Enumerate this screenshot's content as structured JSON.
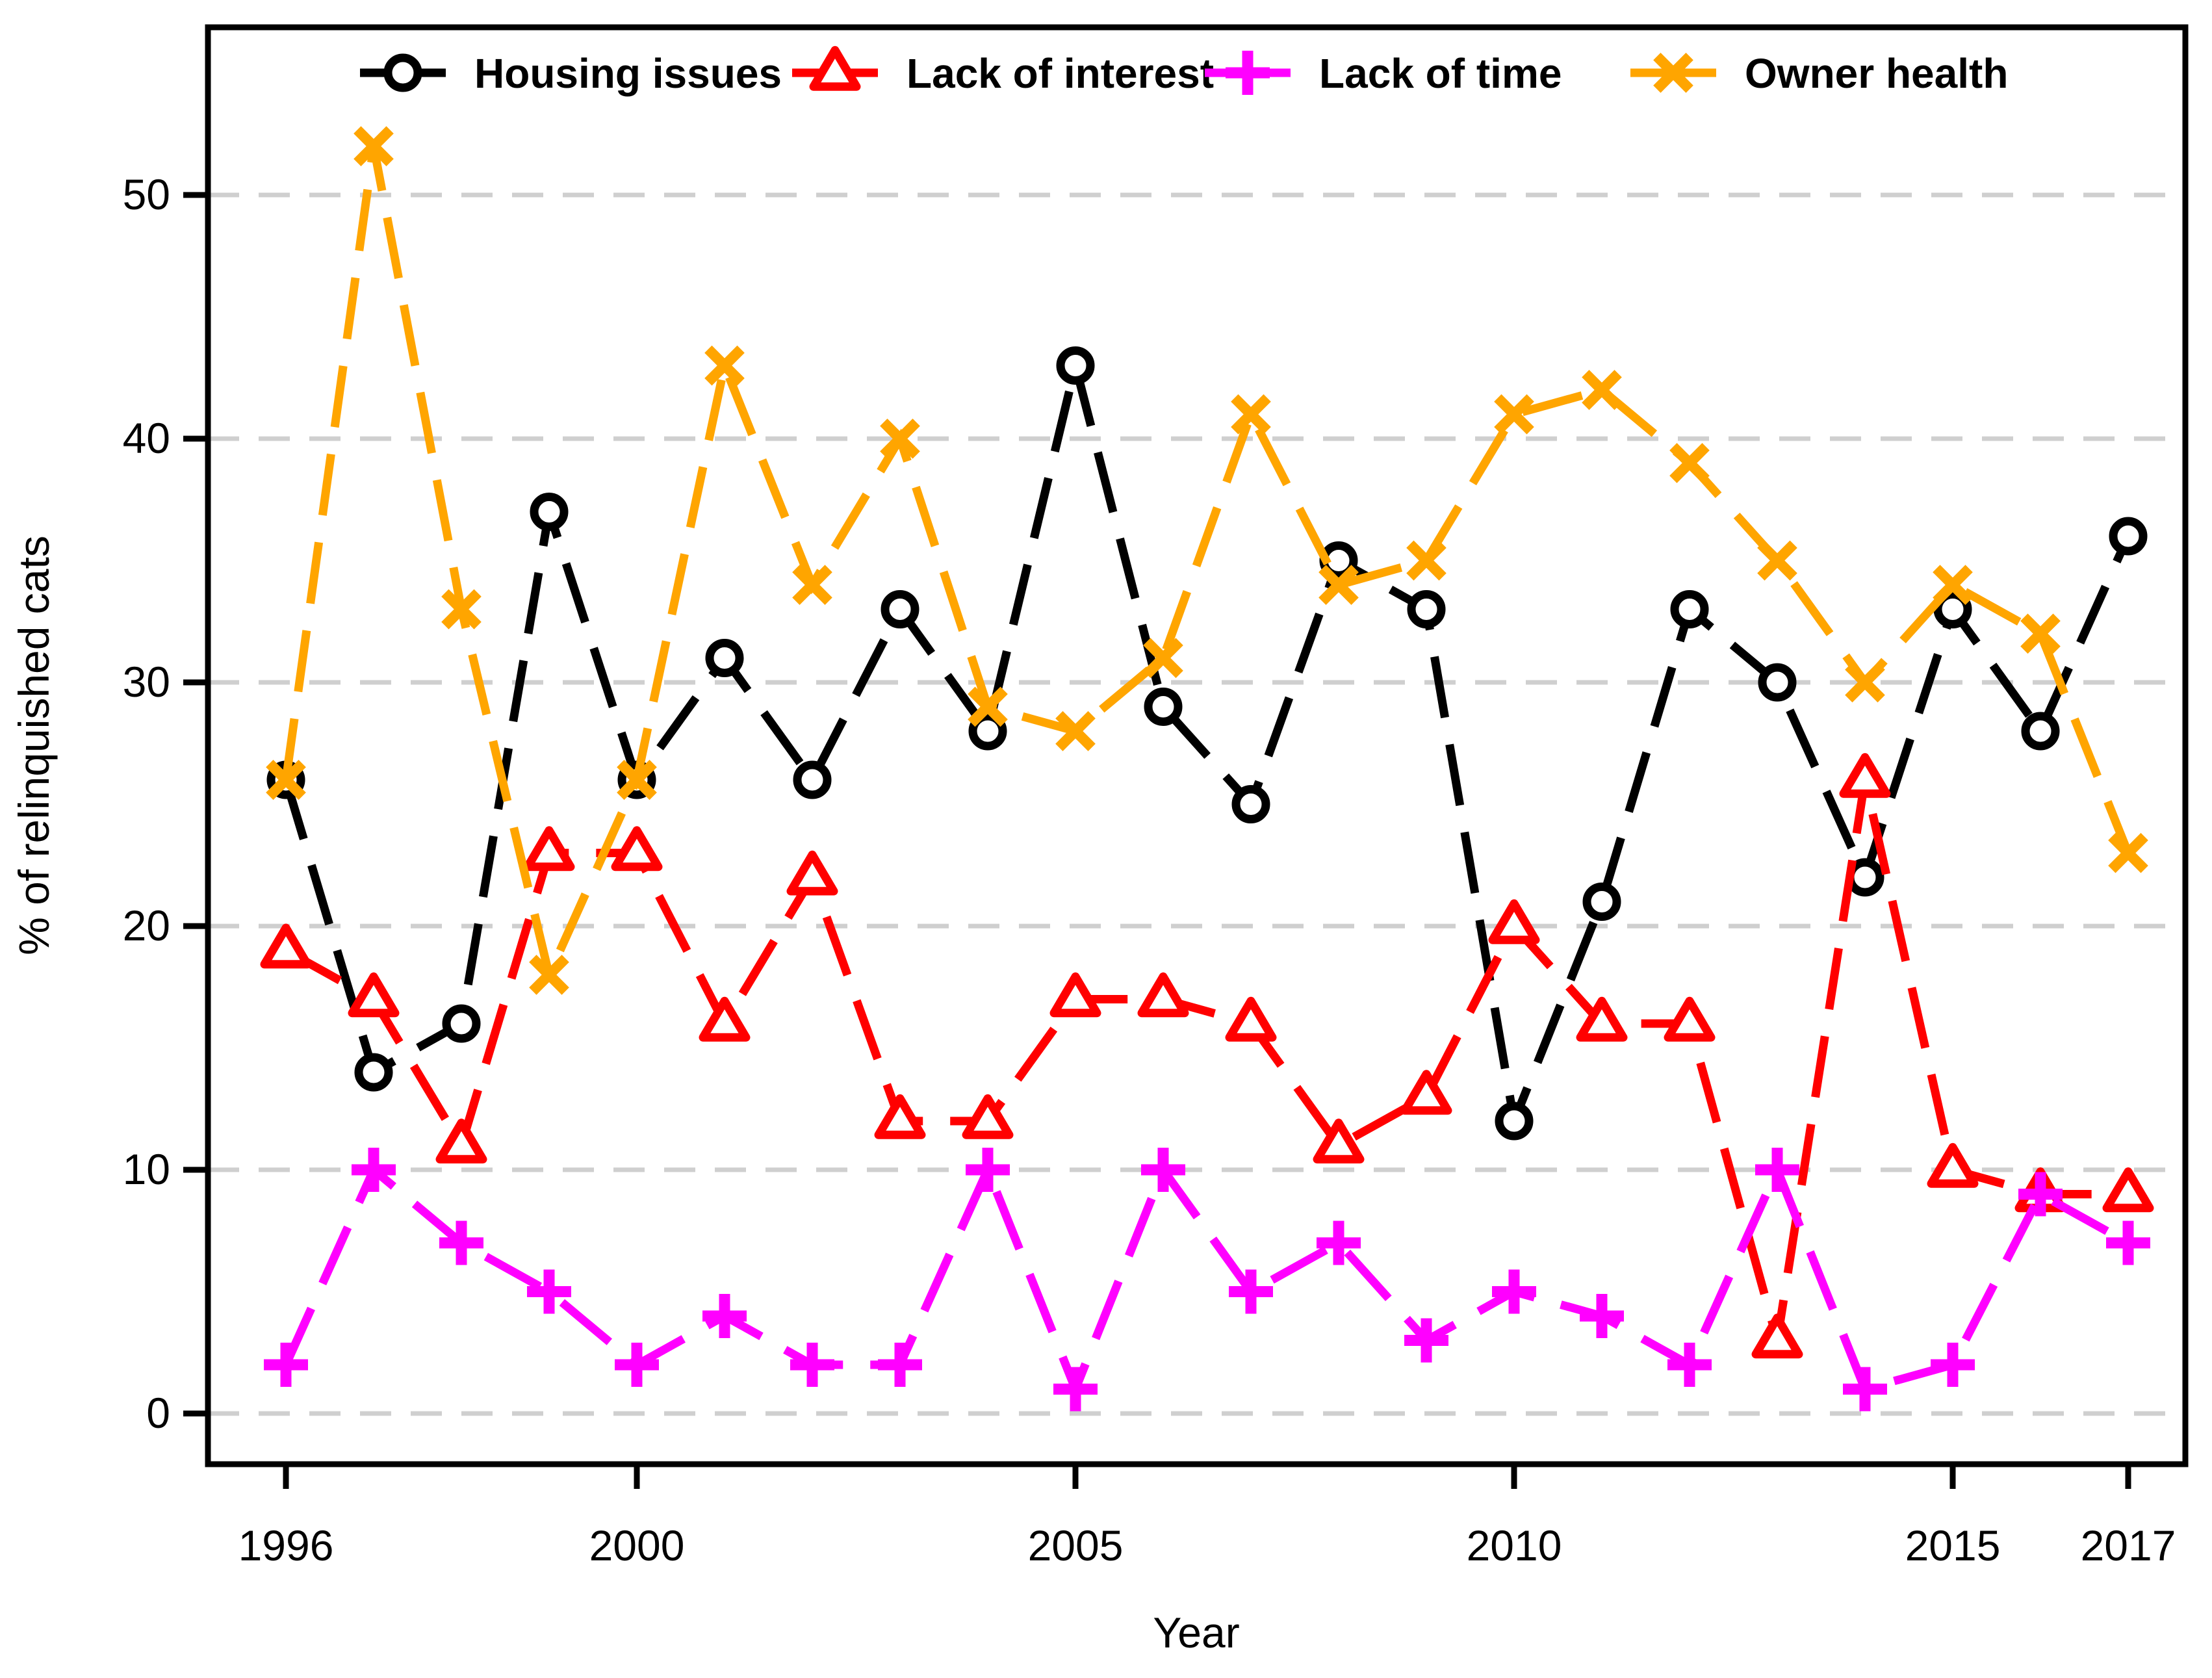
{
  "chart_data": {
    "type": "line",
    "title": "",
    "xlabel": "Year",
    "ylabel": "% of relinquished cats",
    "x": [
      1996,
      1997,
      1998,
      1999,
      2000,
      2001,
      2002,
      2003,
      2004,
      2005,
      2006,
      2007,
      2008,
      2009,
      2010,
      2011,
      2012,
      2013,
      2014,
      2015,
      2016,
      2017
    ],
    "x_tick_labels": [
      1996,
      2000,
      2005,
      2010,
      2015,
      2017
    ],
    "y_tick_labels": [
      0,
      10,
      20,
      30,
      40,
      50
    ],
    "xlim": [
      1995.1,
      2017.65
    ],
    "ylim": [
      -2.1,
      56.9
    ],
    "grid": "horizontal dashed gray lines at each y tick",
    "legend_position": "top inside plot, horizontal row",
    "series": [
      {
        "name": "Housing issues",
        "color": "#000000",
        "marker": "circle-open",
        "values": [
          26,
          14,
          16,
          37,
          26,
          31,
          26,
          33,
          28,
          43,
          29,
          25,
          35,
          33,
          12,
          21,
          33,
          30,
          22,
          33,
          28,
          36
        ]
      },
      {
        "name": "Lack of interest",
        "color": "#ff0000",
        "marker": "triangle-open",
        "values": [
          19,
          17,
          11,
          23,
          23,
          16,
          22,
          12,
          12,
          17,
          17,
          16,
          11,
          13,
          20,
          16,
          16,
          3,
          26,
          10,
          9,
          9
        ]
      },
      {
        "name": "Lack of time",
        "color": "#ff00ff",
        "marker": "plus",
        "values": [
          2,
          10,
          7,
          5,
          2,
          4,
          2,
          2,
          10,
          1,
          10,
          5,
          7,
          3,
          5,
          4,
          2,
          10,
          1,
          2,
          9,
          7
        ]
      },
      {
        "name": "Owner health",
        "color": "#ffa500",
        "marker": "x",
        "values": [
          26,
          52,
          33,
          18,
          26,
          43,
          34,
          40,
          29,
          28,
          31,
          41,
          34,
          35,
          41,
          42,
          39,
          35,
          30,
          34,
          32,
          23
        ]
      }
    ],
    "colors": {
      "grid": "#cfcfcf",
      "frame": "#000000",
      "text": "#000000"
    }
  }
}
